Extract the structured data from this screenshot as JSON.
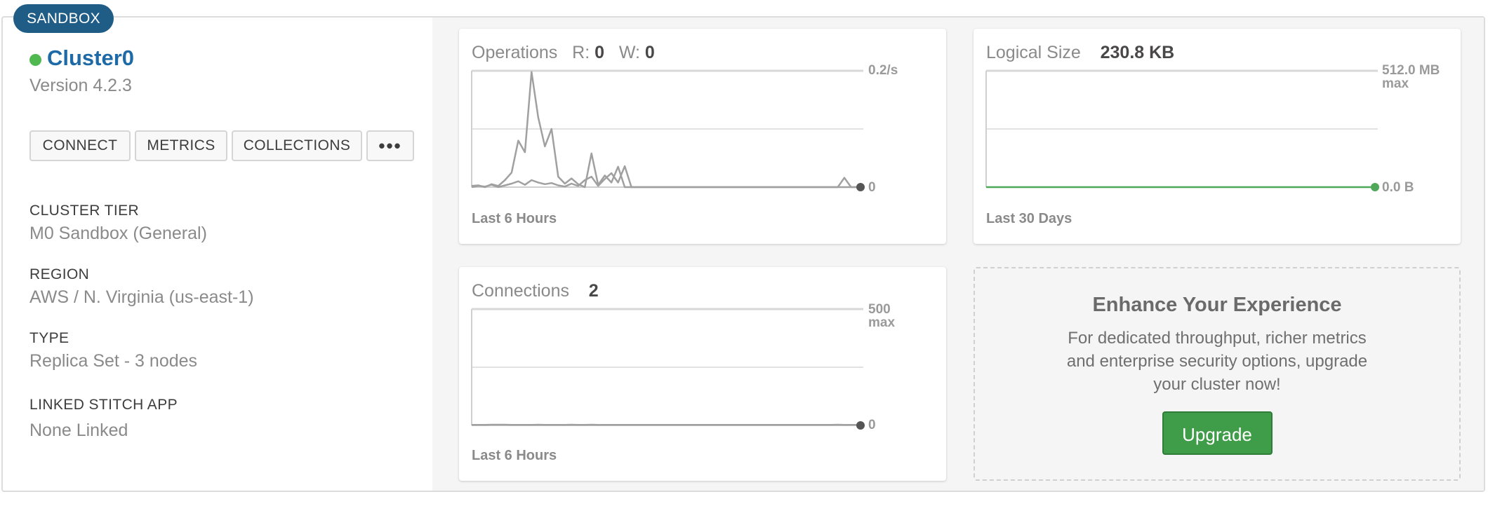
{
  "badge": "SANDBOX",
  "cluster": {
    "name": "Cluster0",
    "version": "Version 4.2.3",
    "status_color": "#4fb84f"
  },
  "buttons": {
    "connect": "CONNECT",
    "metrics": "METRICS",
    "collections": "COLLECTIONS",
    "more": "•••"
  },
  "info": {
    "tier_label": "CLUSTER TIER",
    "tier_value": "M0 Sandbox (General)",
    "region_label": "REGION",
    "region_value": "AWS / N. Virginia (us-east-1)",
    "type_label": "TYPE",
    "type_value": "Replica Set - 3 nodes",
    "stitch_label": "LINKED STITCH APP",
    "stitch_value": "None Linked"
  },
  "operations": {
    "title": "Operations",
    "r_label": "R:",
    "r_value": "0",
    "w_label": "W:",
    "w_value": "0",
    "max_label": "0.2/s",
    "min_label": "0",
    "period": "Last 6 Hours",
    "line_color": "#a0a0a0",
    "series_r": [
      0.002,
      0.003,
      0.0,
      0.005,
      0.002,
      0.012,
      0.025,
      0.08,
      0.06,
      0.198,
      0.12,
      0.07,
      0.1,
      0.018,
      0.006,
      0.015,
      0.005,
      0.0,
      0.058,
      0.004,
      0.02,
      0.008,
      0.035,
      0.0,
      0.0,
      0.0,
      0.0,
      0.0,
      0.0,
      0.0,
      0.0,
      0.0,
      0.0,
      0.0,
      0.0,
      0.0,
      0.0,
      0.0,
      0.0,
      0.0,
      0.0,
      0.0,
      0.0,
      0.0,
      0.0,
      0.0,
      0.0,
      0.0,
      0.0,
      0.0,
      0.0,
      0.0,
      0.0,
      0.0,
      0.0,
      0.0,
      0.016,
      0.0,
      0.0
    ],
    "series_w": [
      0.0,
      0.002,
      0.001,
      0.004,
      0.0,
      0.003,
      0.006,
      0.01,
      0.004,
      0.012,
      0.008,
      0.005,
      0.007,
      0.003,
      0.001,
      0.006,
      0.002,
      0.012,
      0.018,
      0.002,
      0.014,
      0.024,
      0.008,
      0.036,
      0.0,
      0.0,
      0.0,
      0.0,
      0.0,
      0.0,
      0.0,
      0.0,
      0.0,
      0.0,
      0.0,
      0.0,
      0.0,
      0.0,
      0.0,
      0.0,
      0.0,
      0.0,
      0.0,
      0.0,
      0.0,
      0.0,
      0.0,
      0.0,
      0.0,
      0.0,
      0.0,
      0.0,
      0.0,
      0.0,
      0.0,
      0.0,
      0.0,
      0.0,
      0.0
    ],
    "ylim": [
      0,
      0.2
    ]
  },
  "logical_size": {
    "title": "Logical Size",
    "value": "230.8 KB",
    "max_label": "512.0 MB",
    "max_sub": "max",
    "min_label": "0.0 B",
    "period": "Last 30 Days",
    "line_color": "#4fa85a",
    "series": [
      0,
      0,
      0,
      0,
      0,
      0,
      0,
      0,
      0,
      0,
      0,
      0,
      0,
      0,
      0,
      0,
      0,
      0,
      0,
      0,
      0,
      0,
      0,
      0,
      0,
      0,
      0,
      0,
      0,
      0
    ]
  },
  "connections": {
    "title": "Connections",
    "value": "2",
    "max_label": "500",
    "max_sub": "max",
    "min_label": "0",
    "period": "Last 6 Hours",
    "line_color": "#a0a0a0",
    "series": [
      2,
      2,
      2,
      3,
      3,
      3,
      2,
      2,
      2,
      2,
      3,
      2,
      2,
      2,
      2,
      3,
      2,
      2,
      3,
      2,
      2,
      2,
      2,
      2,
      2,
      2,
      2,
      2,
      2,
      2,
      2,
      2,
      2,
      2,
      2,
      2,
      2,
      2,
      2,
      2,
      2,
      2,
      2,
      2,
      2,
      2,
      2,
      2,
      2,
      2,
      2,
      2,
      2,
      2,
      2,
      3,
      2,
      2,
      2
    ],
    "ylim": [
      0,
      500
    ]
  },
  "upsell": {
    "title": "Enhance Your Experience",
    "text": "For dedicated throughput, richer metrics and enterprise security options, upgrade your cluster now!",
    "button": "Upgrade",
    "button_color": "#3f9c49"
  }
}
